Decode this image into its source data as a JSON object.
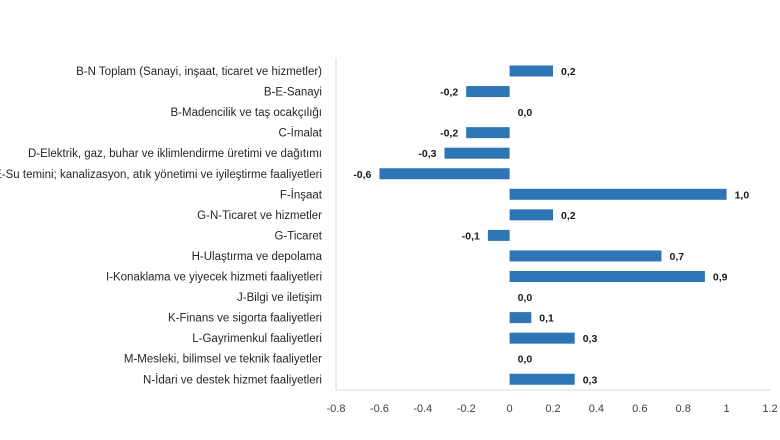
{
  "chart_data": {
    "type": "bar",
    "orientation": "horizontal",
    "categories": [
      "B-N Toplam (Sanayi, inşaat, ticaret ve hizmetler)",
      "B-E-Sanayi",
      "B-Madencilik ve taş ocakçılığı",
      "C-İmalat",
      "D-Elektrik, gaz, buhar ve iklimlendirme üretimi ve dağıtımı",
      "E-Su temini; kanalizasyon, atık yönetimi ve iyileştirme faaliyetleri",
      "F-İnşaat",
      "G-N-Ticaret ve hizmetler",
      "G-Ticaret",
      "H-Ulaştırma ve depolama",
      "I-Konaklama ve yiyecek hizmeti faaliyetleri",
      "J-Bilgi ve iletişim",
      "K-Finans ve sigorta faaliyetleri",
      "L-Gayrimenkul faaliyetleri",
      "M-Mesleki, bilimsel ve teknik faaliyetler",
      "N-İdari ve destek hizmet faaliyetleri"
    ],
    "values": [
      0.2,
      -0.2,
      0.0,
      -0.2,
      -0.3,
      -0.6,
      1.0,
      0.2,
      -0.1,
      0.7,
      0.9,
      0.0,
      0.1,
      0.3,
      0.0,
      0.3
    ],
    "value_labels": [
      "0,2",
      "-0,2",
      "0,0",
      "-0,2",
      "-0,3",
      "-0,6",
      "1,0",
      "0,2",
      "-0,1",
      "0,7",
      "0,9",
      "0,0",
      "0,1",
      "0,3",
      "0,0",
      "0,3"
    ],
    "xlim": [
      -0.8,
      1.2
    ],
    "xticks": [
      -0.8,
      -0.6,
      -0.4,
      -0.2,
      0,
      0.2,
      0.4,
      0.6,
      0.8,
      1,
      1.2
    ],
    "xtick_labels": [
      "-0.8",
      "-0.6",
      "-0.4",
      "-0.2",
      "0",
      "0.2",
      "0.4",
      "0.6",
      "0.8",
      "1",
      "1.2"
    ],
    "title": "",
    "xlabel": "",
    "ylabel": "",
    "grid": false,
    "legend": "none",
    "bar_color": "#2e75b6"
  }
}
